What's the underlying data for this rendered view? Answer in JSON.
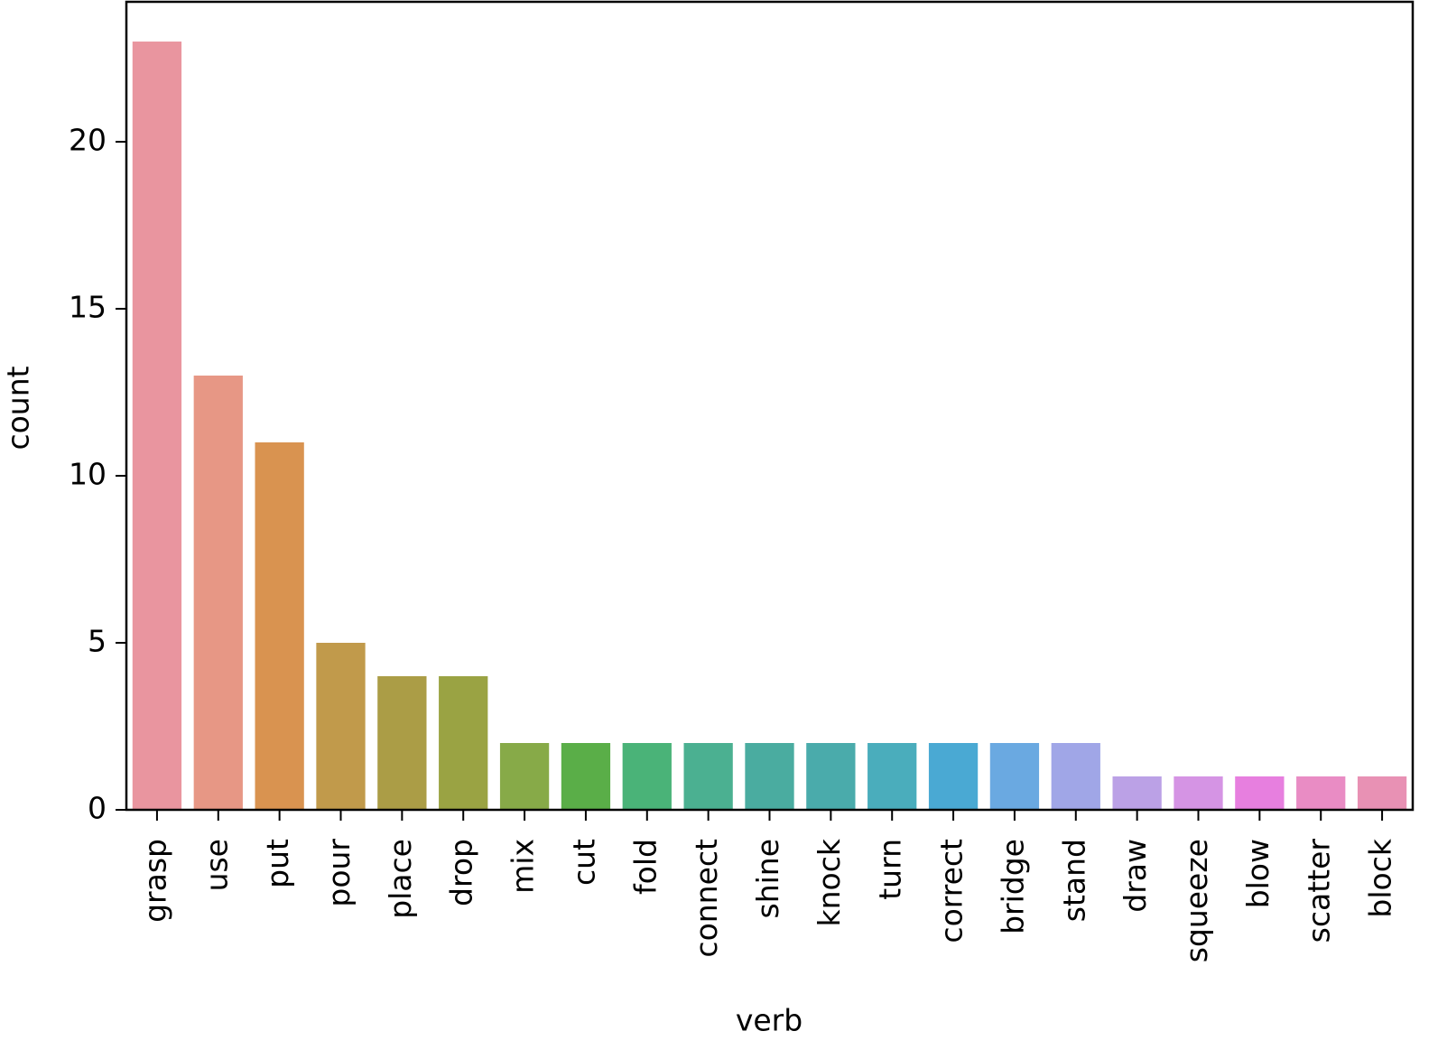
{
  "chart_data": {
    "type": "bar",
    "x_label": "verb",
    "y_label": "count",
    "categories": [
      "grasp",
      "use",
      "put",
      "pour",
      "place",
      "drop",
      "mix",
      "cut",
      "fold",
      "connect",
      "shine",
      "knock",
      "turn",
      "correct",
      "bridge",
      "stand",
      "draw",
      "squeeze",
      "blow",
      "scatter",
      "block"
    ],
    "values": [
      23,
      13,
      11,
      5,
      4,
      4,
      2,
      2,
      2,
      2,
      2,
      2,
      2,
      2,
      2,
      2,
      1,
      1,
      1,
      1,
      1
    ],
    "colors": [
      "#e9959f",
      "#e79785",
      "#d99350",
      "#c19a4b",
      "#ab9d46",
      "#9aa343",
      "#87aa48",
      "#5aae48",
      "#4ab378",
      "#4bb091",
      "#4aaca0",
      "#4aabab",
      "#4aadbc",
      "#4aa9d3",
      "#6aa9e1",
      "#a0a6e7",
      "#bba1e6",
      "#d594e4",
      "#e77fdf",
      "#e98cc4",
      "#e891b4"
    ],
    "ylim": [
      0,
      24.19
    ],
    "yticks": [
      0,
      5,
      10,
      15,
      20
    ],
    "grid": false
  }
}
